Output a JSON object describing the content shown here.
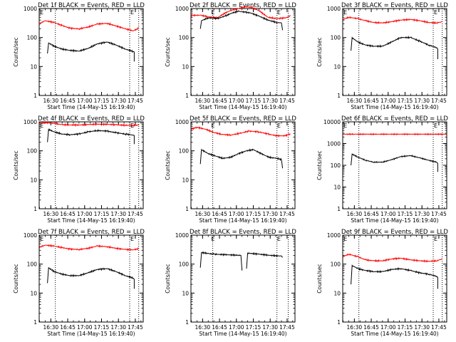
{
  "figure": {
    "background": "#ffffff",
    "axis_color": "#000000",
    "series_colors": {
      "events": "#000000",
      "lld": "#ff0000"
    }
  },
  "chart_data": [
    {
      "type": "line",
      "title": "Det 1f BLACK = Events, RED = LLD",
      "xlabel": "Start Time (14-May-15 16:19:40)",
      "ylabel": "Counts/sec",
      "yscale": "log",
      "ylim": [
        1,
        1000
      ],
      "ytick_labels": [
        "1",
        "10",
        "100",
        "1000"
      ],
      "xtick_labels": [
        "16:30",
        "16:45",
        "17:00",
        "17:15",
        "17:30",
        "17:45"
      ],
      "xlim": [
        "16:19:40",
        "17:52:00"
      ],
      "markers": [
        {
          "label": "E",
          "time": "16:19:45"
        },
        {
          "label": "E",
          "time": "17:40:00"
        }
      ],
      "vlines": [
        "16:34:00",
        "17:40:00",
        "17:48:00"
      ],
      "series": [
        {
          "name": "LLD",
          "x": [
            "16:19:40",
            "16:25",
            "16:33",
            "16:40",
            "16:47",
            "16:55",
            "17:03",
            "17:11",
            "17:20",
            "17:28",
            "17:36",
            "17:43",
            "17:48"
          ],
          "values": [
            300,
            380,
            330,
            260,
            210,
            200,
            230,
            290,
            310,
            250,
            200,
            170,
            210
          ]
        },
        {
          "name": "Events",
          "x": [
            "16:27",
            "16:28",
            "16:33",
            "16:40",
            "16:47",
            "16:55",
            "17:03",
            "17:11",
            "17:20",
            "17:28",
            "17:36",
            "17:43",
            "17:44",
            "17:44"
          ],
          "values": [
            28,
            65,
            50,
            40,
            36,
            34,
            42,
            60,
            70,
            55,
            40,
            33,
            32,
            15
          ]
        }
      ]
    },
    {
      "type": "line",
      "title": "Det 2f BLACK = Events, RED = LLD",
      "xlabel": "Start Time (14-May-15 16:19:40)",
      "ylabel": "Counts/sec",
      "yscale": "log",
      "ylim": [
        1,
        1000
      ],
      "ytick_labels": [
        "1",
        "10",
        "100",
        "1000"
      ],
      "xtick_labels": [
        "16:30",
        "16:45",
        "17:00",
        "17:15",
        "17:30",
        "17:45"
      ],
      "xlim": [
        "16:19:40",
        "17:52:00"
      ],
      "markers": [
        {
          "label": "E",
          "time": "16:37:00"
        },
        {
          "label": "E",
          "time": "17:35:30"
        }
      ],
      "vlines": [
        "16:39:00",
        "17:36:00",
        "17:46:00"
      ],
      "series": [
        {
          "name": "LLD",
          "x": [
            "16:19:40",
            "16:28",
            "16:35",
            "16:43",
            "16:50",
            "16:56",
            "17:02",
            "17:08",
            "17:13",
            "17:20",
            "17:28",
            "17:36",
            "17:44",
            "17:48"
          ],
          "values": [
            580,
            590,
            520,
            480,
            700,
            900,
            1000,
            1150,
            1100,
            850,
            500,
            450,
            480,
            560
          ]
        },
        {
          "name": "Events",
          "x": [
            "16:28",
            "16:29",
            "16:35",
            "16:43",
            "16:50",
            "16:56",
            "17:02",
            "17:08",
            "17:13",
            "17:20",
            "17:28",
            "17:36",
            "17:40",
            "17:41"
          ],
          "values": [
            200,
            380,
            480,
            450,
            550,
            700,
            800,
            750,
            700,
            550,
            400,
            330,
            320,
            180
          ]
        }
      ]
    },
    {
      "type": "line",
      "title": "Det 3f BLACK = Events, RED = LLD",
      "xlabel": "Start Time (14-May-15 16:19:40)",
      "ylabel": "Counts/sec",
      "yscale": "log",
      "ylim": [
        1,
        1000
      ],
      "ytick_labels": [
        "1",
        "10",
        "100",
        "1000"
      ],
      "xtick_labels": [
        "16:30",
        "16:45",
        "17:00",
        "17:15",
        "17:30",
        "17:45"
      ],
      "xlim": [
        "16:19:40",
        "17:52:00"
      ],
      "markers": [
        {
          "label": "E",
          "time": "16:19:45"
        },
        {
          "label": "E",
          "time": "17:40:00"
        }
      ],
      "vlines": [
        "16:34:00",
        "17:40:00",
        "17:48:00"
      ],
      "series": [
        {
          "name": "LLD",
          "x": [
            "16:19:40",
            "16:25",
            "16:33",
            "16:40",
            "16:47",
            "16:55",
            "17:03",
            "17:11",
            "17:20",
            "17:28",
            "17:36",
            "17:43",
            "17:48"
          ],
          "values": [
            420,
            500,
            450,
            380,
            330,
            320,
            350,
            400,
            420,
            380,
            330,
            320,
            350
          ]
        },
        {
          "name": "Events",
          "x": [
            "16:27",
            "16:28",
            "16:33",
            "16:40",
            "16:47",
            "16:55",
            "17:03",
            "17:11",
            "17:20",
            "17:28",
            "17:36",
            "17:43",
            "17:44",
            "17:44"
          ],
          "values": [
            35,
            100,
            70,
            55,
            50,
            50,
            70,
            100,
            100,
            75,
            55,
            45,
            40,
            18
          ]
        }
      ]
    },
    {
      "type": "line",
      "title": "Det 4f BLACK = Events, RED = LLD",
      "xlabel": "Start Time (14-May-15 16:19:40)",
      "ylabel": "Counts/sec",
      "yscale": "log",
      "ylim": [
        1,
        1000
      ],
      "ytick_labels": [
        "1",
        "10",
        "100",
        "1000"
      ],
      "xtick_labels": [
        "16:30",
        "16:45",
        "17:00",
        "17:15",
        "17:30",
        "17:45"
      ],
      "xlim": [
        "16:19:40",
        "17:52:00"
      ],
      "markers": [
        {
          "label": "E",
          "time": "16:19:45"
        },
        {
          "label": "E",
          "time": "17:40:00"
        }
      ],
      "vlines": [
        "16:34:00",
        "17:40:00",
        "17:48:00"
      ],
      "series": [
        {
          "name": "LLD",
          "x": [
            "16:19:40",
            "16:25",
            "16:33",
            "16:40",
            "16:47",
            "16:55",
            "17:03",
            "17:11",
            "17:20",
            "17:28",
            "17:36",
            "17:43",
            "17:48"
          ],
          "values": [
            900,
            950,
            880,
            800,
            780,
            780,
            800,
            830,
            820,
            790,
            760,
            750,
            780
          ]
        },
        {
          "name": "Events",
          "x": [
            "16:27",
            "16:28",
            "16:33",
            "16:40",
            "16:47",
            "16:55",
            "17:03",
            "17:11",
            "17:20",
            "17:28",
            "17:36",
            "17:43",
            "17:44",
            "17:44"
          ],
          "values": [
            200,
            550,
            450,
            380,
            360,
            380,
            450,
            500,
            480,
            420,
            380,
            350,
            340,
            170
          ]
        }
      ]
    },
    {
      "type": "line",
      "title": "Det 5f BLACK = Events, RED = LLD",
      "xlabel": "Start Time (14-May-15 16:19:40)",
      "ylabel": "Counts/sec",
      "yscale": "log",
      "ylim": [
        1,
        1000
      ],
      "ytick_labels": [
        "1",
        "10",
        "100",
        "1000"
      ],
      "xtick_labels": [
        "16:30",
        "16:45",
        "17:00",
        "17:15",
        "17:30",
        "17:45"
      ],
      "xlim": [
        "16:19:40",
        "17:52:00"
      ],
      "markers": [
        {
          "label": "E",
          "time": "16:37:00"
        },
        {
          "label": "E",
          "time": "17:35:30"
        }
      ],
      "vlines": [
        "16:39:00",
        "17:36:00",
        "17:46:00"
      ],
      "series": [
        {
          "name": "LLD",
          "x": [
            "16:19:40",
            "16:25",
            "16:33",
            "16:40",
            "16:47",
            "16:55",
            "17:03",
            "17:11",
            "17:20",
            "17:28",
            "17:36",
            "17:43",
            "17:48"
          ],
          "values": [
            550,
            650,
            550,
            430,
            370,
            350,
            400,
            480,
            450,
            380,
            330,
            330,
            380
          ]
        },
        {
          "name": "Events",
          "x": [
            "16:28",
            "16:29",
            "16:35",
            "16:42",
            "16:48",
            "16:55",
            "17:02",
            "17:09",
            "17:15",
            "17:22",
            "17:29",
            "17:36",
            "17:40",
            "17:41"
          ],
          "values": [
            35,
            110,
            80,
            65,
            55,
            60,
            80,
            100,
            110,
            80,
            60,
            55,
            50,
            25
          ]
        }
      ]
    },
    {
      "type": "line",
      "title": "Det 6f BLACK = Events, RED = LLD",
      "xlabel": "Start Time (14-May-15 16:19:40)",
      "ylabel": "Counts/sec",
      "yscale": "log",
      "ylim": [
        1,
        10000
      ],
      "ytick_labels": [
        "1",
        "10",
        "100",
        "1000",
        "10000"
      ],
      "xtick_labels": [
        "16:30",
        "16:45",
        "17:00",
        "17:15",
        "17:30",
        "17:45"
      ],
      "xlim": [
        "16:19:40",
        "17:52:00"
      ],
      "markers": [
        {
          "label": "E",
          "time": "16:19:45"
        },
        {
          "label": "E",
          "time": "17:40:00"
        }
      ],
      "vlines": [
        "16:34:00",
        "17:40:00",
        "17:48:00"
      ],
      "series": [
        {
          "name": "LLD",
          "x": [
            "16:19:40",
            "17:52"
          ],
          "values": [
            2700,
            2700
          ]
        },
        {
          "name": "Events",
          "x": [
            "16:27",
            "16:28",
            "16:33",
            "16:40",
            "16:47",
            "16:55",
            "17:03",
            "17:11",
            "17:20",
            "17:28",
            "17:36",
            "17:43",
            "17:44",
            "17:44"
          ],
          "values": [
            100,
            330,
            240,
            170,
            140,
            140,
            180,
            250,
            280,
            220,
            170,
            140,
            120,
            50
          ]
        }
      ]
    },
    {
      "type": "line",
      "title": "Det 7f BLACK = Events, RED = LLD",
      "xlabel": "Start Time (14-May-15 16:19:40)",
      "ylabel": "Counts/sec",
      "yscale": "log",
      "ylim": [
        1,
        1000
      ],
      "ytick_labels": [
        "1",
        "10",
        "100",
        "1000"
      ],
      "xtick_labels": [
        "16:30",
        "16:45",
        "17:00",
        "17:15",
        "17:30",
        "17:45"
      ],
      "xlim": [
        "16:19:40",
        "17:52:00"
      ],
      "markers": [
        {
          "label": "E",
          "time": "16:19:45"
        },
        {
          "label": "E",
          "time": "17:40:00"
        }
      ],
      "vlines": [
        "16:34:00",
        "17:40:00",
        "17:48:00"
      ],
      "series": [
        {
          "name": "LLD",
          "x": [
            "16:19:40",
            "16:25",
            "16:33",
            "16:40",
            "16:47",
            "16:55",
            "17:03",
            "17:11",
            "17:20",
            "17:28",
            "17:36",
            "17:43",
            "17:48"
          ],
          "values": [
            380,
            450,
            420,
            370,
            330,
            320,
            350,
            420,
            400,
            350,
            320,
            310,
            340
          ]
        },
        {
          "name": "Events",
          "x": [
            "16:27",
            "16:28",
            "16:33",
            "16:40",
            "16:47",
            "16:55",
            "17:03",
            "17:11",
            "17:20",
            "17:28",
            "17:36",
            "17:43",
            "17:44",
            "17:44"
          ],
          "values": [
            22,
            75,
            55,
            45,
            40,
            40,
            50,
            65,
            70,
            55,
            40,
            33,
            30,
            14
          ]
        }
      ]
    },
    {
      "type": "line",
      "title": "Det 8f BLACK = Events, RED = LLD",
      "xlabel": "Start Time (14-May-15 16:19:40)",
      "ylabel": "Counts/sec",
      "yscale": "log",
      "ylim": [
        1,
        1000
      ],
      "ytick_labels": [
        "1",
        "10",
        "100",
        "1000"
      ],
      "xtick_labels": [
        "16:30",
        "16:45",
        "17:00",
        "17:15",
        "17:30",
        "17:45"
      ],
      "xlim": [
        "16:19:40",
        "17:52:00"
      ],
      "markers": [
        {
          "label": "E",
          "time": "16:37:00"
        },
        {
          "label": "E",
          "time": "17:35:30"
        }
      ],
      "vlines": [
        "16:39:00",
        "17:36:00",
        "17:46:00"
      ],
      "series": [
        {
          "name": "Events",
          "x": [
            "16:28",
            "16:29",
            "16:40",
            "16:52",
            "17:04",
            "17:05"
          ],
          "values": [
            75,
            250,
            220,
            210,
            200,
            60
          ]
        },
        {
          "name": "Events",
          "x": [
            "17:09",
            "17:10",
            "17:20",
            "17:30",
            "17:40",
            "17:41"
          ],
          "values": [
            70,
            240,
            220,
            200,
            190,
            170
          ]
        }
      ]
    },
    {
      "type": "line",
      "title": "Det 9f BLACK = Events, RED = LLD",
      "xlabel": "Start Time (14-May-15 16:19:40)",
      "ylabel": "Counts/sec",
      "yscale": "log",
      "ylim": [
        1,
        1000
      ],
      "ytick_labels": [
        "1",
        "10",
        "100",
        "1000"
      ],
      "xtick_labels": [
        "16:30",
        "16:45",
        "17:00",
        "17:15",
        "17:30",
        "17:45"
      ],
      "xlim": [
        "16:19:40",
        "17:52:00"
      ],
      "markers": [
        {
          "label": "E",
          "time": "16:19:45"
        },
        {
          "label": "E",
          "time": "17:40:00"
        }
      ],
      "vlines": [
        "16:34:00",
        "17:40:00",
        "17:48:00"
      ],
      "series": [
        {
          "name": "LLD",
          "x": [
            "16:19:40",
            "16:25",
            "16:33",
            "16:40",
            "16:47",
            "16:55",
            "17:03",
            "17:11",
            "17:20",
            "17:28",
            "17:36",
            "17:43",
            "17:48"
          ],
          "values": [
            180,
            220,
            180,
            140,
            130,
            130,
            150,
            160,
            140,
            130,
            125,
            130,
            150
          ]
        },
        {
          "name": "Events",
          "x": [
            "16:27",
            "16:28",
            "16:33",
            "16:40",
            "16:47",
            "16:55",
            "17:03",
            "17:11",
            "17:20",
            "17:28",
            "17:36",
            "17:43",
            "17:44",
            "17:44"
          ],
          "values": [
            20,
            90,
            70,
            60,
            55,
            55,
            65,
            70,
            60,
            50,
            45,
            38,
            35,
            14
          ]
        }
      ]
    }
  ]
}
